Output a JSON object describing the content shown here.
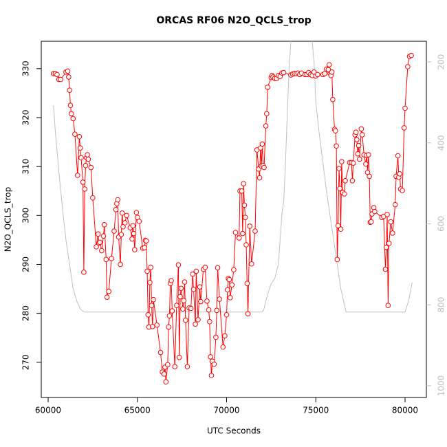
{
  "chart_data": {
    "type": "line",
    "title": "ORCAS RF06 N2O_QCLS_trop",
    "xlabel": "UTC Seconds",
    "ylabel": "N2O_QCLS_trop",
    "xlim": [
      59615,
      81195
    ],
    "xticks": [
      60000,
      65000,
      70000,
      75000,
      80000
    ],
    "ylim": [
      262.8,
      335.6
    ],
    "yticks": [
      270,
      280,
      290,
      300,
      310,
      320,
      330
    ],
    "y2lim": [
      1029,
      149
    ],
    "y2ticks": [
      200,
      400,
      600,
      800,
      1000
    ],
    "series": [
      {
        "color": "#ff0000",
        "markers": true,
        "x": [
          60300,
          60400,
          60500,
          60600,
          60700,
          61000,
          61100,
          61150,
          61200,
          61250,
          61300,
          61400,
          61500,
          61650,
          61750,
          61800,
          61850,
          61950,
          62000,
          62050,
          62100,
          62150,
          62200,
          62250,
          62400,
          62500,
          62700,
          62800,
          62850,
          62900,
          63000,
          63100,
          63150,
          63250,
          63300,
          63400,
          63550,
          63700,
          63800,
          63850,
          63900,
          63950,
          64050,
          64100,
          64150,
          64200,
          64300,
          64400,
          64600,
          64700,
          64750,
          64800,
          64850,
          64950,
          65000,
          65100,
          65300,
          65400,
          65450,
          65500,
          65550,
          65600,
          65650,
          65700,
          65750,
          65800,
          65850,
          65900,
          66100,
          66300,
          66400,
          66500,
          66550,
          66600,
          66700,
          66750,
          66800,
          66850,
          66900,
          66950,
          67100,
          67200,
          67300,
          67350,
          67400,
          67450,
          67550,
          67600,
          67650,
          67700,
          67800,
          67900,
          68000,
          68100,
          68150,
          68250,
          68300,
          68400,
          68500,
          68550,
          68700,
          68800,
          68900,
          69000,
          69050,
          69100,
          69150,
          69200,
          69300,
          69400,
          69450,
          69500,
          69600,
          69800,
          69900,
          70000,
          70050,
          70100,
          70150,
          70200,
          70300,
          70400,
          70500,
          70700,
          70750,
          70850,
          70900,
          70950,
          71000,
          71050,
          71100,
          71150,
          71200,
          71300,
          71400,
          71600,
          71700,
          71800,
          71850,
          71900,
          71950,
          72000,
          72050,
          72100,
          72200,
          72250,
          72300,
          72500,
          72550,
          72600,
          72700,
          72800,
          72900,
          73000,
          73100,
          73200,
          73600,
          73700,
          73800,
          73900,
          74000,
          74100,
          74200,
          74400,
          74500,
          74600,
          74700,
          74800,
          74900,
          75000,
          75100,
          75400,
          75500,
          75600,
          75700,
          75750,
          75800,
          75850,
          75900,
          75950,
          76050,
          76100,
          76150,
          76200,
          76250,
          76300,
          76350,
          76400,
          76450,
          76500,
          76600,
          76650,
          76900,
          77000,
          77050,
          77100,
          77200,
          77250,
          77300,
          77350,
          77400,
          77450,
          77550,
          77600,
          77700,
          77800,
          77850,
          77900,
          77950,
          78000,
          78050,
          78100,
          78150,
          78250,
          78300,
          78700,
          78800,
          78900,
          78950,
          79000,
          79050,
          79100,
          79200,
          79300,
          79450,
          79500,
          79600,
          79650,
          79700,
          79750,
          79850,
          79950,
          80000,
          80150,
          80250,
          80350
        ],
        "values": [
          329,
          329,
          328.8,
          327.8,
          327.8,
          329.3,
          329.5,
          328.3,
          325.6,
          322.5,
          320.8,
          319.8,
          316.6,
          308.2,
          316.1,
          313.8,
          311.8,
          306.8,
          288.4,
          305.4,
          310.2,
          311.8,
          312.4,
          311.5,
          309.8,
          303.6,
          293.6,
          296.2,
          294.3,
          294.5,
          292.8,
          295.8,
          298.1,
          291,
          283.3,
          284.5,
          291.2,
          296.8,
          301.2,
          302.4,
          303.2,
          295.6,
          290,
          296.1,
          300.5,
          297.7,
          298.5,
          300,
          297.5,
          295.2,
          297.9,
          296.3,
          293,
          300.6,
          299.6,
          298.8,
          293.3,
          293.4,
          294.9,
          294.8,
          288.6,
          279.7,
          277.2,
          286.3,
          289.4,
          281.6,
          277.3,
          282.8,
          277.6,
          272,
          268,
          267.6,
          269,
          266,
          269.5,
          277.2,
          279.5,
          286.1,
          286.7,
          280.5,
          269.1,
          281.6,
          289.9,
          271,
          283.4,
          285.1,
          280.9,
          282.6,
          286.4,
          278.6,
          269.1,
          281.1,
          281,
          288,
          284.9,
          277.8,
          288.6,
          278.7,
          285.4,
          282.4,
          289,
          289.4,
          282.5,
          280.7,
          278.3,
          271.1,
          267.3,
          270.2,
          269.6,
          275.1,
          280.6,
          289.3,
          282.9,
          273.1,
          275.4,
          279.7,
          284.8,
          287.1,
          286.9,
          283.2,
          285.8,
          288.9,
          296.5,
          295.4,
          305,
          305,
          296.3,
          306.5,
          302.1,
          299.6,
          294,
          286.1,
          279.9,
          297.8,
          290.1,
          296.8,
          313.4,
          309.5,
          307.7,
          313.8,
          310.1,
          314.6,
          310.2,
          309.8,
          318.3,
          320.8,
          326.2,
          328.2,
          328.6,
          328.3,
          328,
          328,
          328.6,
          328.4,
          329.1,
          329.2,
          328.7,
          328.9,
          329,
          329,
          329.1,
          328.8,
          329.1,
          328.8,
          328.8,
          329.2,
          328.8,
          328.6,
          329.3,
          328.5,
          328.8,
          328.8,
          329,
          329.9,
          329.8,
          330.8,
          329,
          328.6,
          329.3,
          323.7,
          317.6,
          317.3,
          314.2,
          291,
          297.9,
          309.6,
          305.5,
          297.2,
          311,
          304.7,
          304.4,
          307.1,
          310.8,
          310.8,
          307.1,
          310.7,
          316.5,
          317,
          315.5,
          312.6,
          314.3,
          311.5,
          317.7,
          316.5,
          312.4,
          310.5,
          312.3,
          308.8,
          312.4,
          308,
          298.6,
          298.7,
          300.3,
          301.6,
          300.8,
          299.6,
          299.8,
          289,
          293.5,
          300.2,
          281.6,
          294.3,
          298.7,
          296.4,
          302.2,
          308,
          312.2,
          307.8,
          308.5,
          305.4,
          305.1,
          317.9,
          321.9,
          330.4,
          332.5,
          332.7
        ]
      },
      {
        "color": "#c0c0c0",
        "axis": "y2",
        "markers": false,
        "x": [
          60300,
          60400,
          60600,
          60800,
          61000,
          61200,
          61400,
          61600,
          61800,
          62000,
          72000,
          72100,
          72200,
          72400,
          72500,
          72700,
          72900,
          73000,
          73100,
          73200,
          73300,
          73400,
          73500,
          73600,
          73700,
          74700,
          74800,
          74900,
          75000,
          75200,
          75400,
          75600,
          75800,
          76000,
          76200,
          76400,
          76600,
          76700,
          80000,
          80200,
          80400
        ],
        "values": [
          307,
          370,
          470,
          560,
          640,
          700,
          760,
          790,
          810,
          818,
          818,
          810,
          790,
          760,
          748,
          735,
          700,
          640,
          575,
          545,
          450,
          330,
          220,
          150,
          60,
          60,
          150,
          200,
          300,
          380,
          450,
          520,
          580,
          640,
          700,
          760,
          800,
          818,
          818,
          790,
          745
        ]
      }
    ]
  }
}
